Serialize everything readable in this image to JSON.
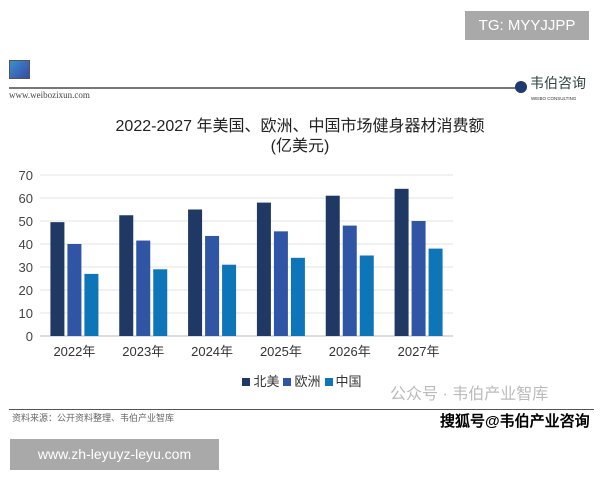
{
  "overlay_top": "TG: MYYJJPP",
  "overlay_bottom": "www.zh-leyuyz-leyu.com",
  "header": {
    "site": "www.weibozixun.com",
    "logo_cn": "韦伯咨询",
    "logo_en": "WEIBO CONSULTING"
  },
  "footer": {
    "source": "资料来源：公开资料整理、韦伯产业智库",
    "watermark_wechat": "公众号 · 韦伯产业智库",
    "watermark_sohu": "搜狐号@韦伯产业咨询"
  },
  "colors": {
    "北美": "#1f3864",
    "欧洲": "#2f55a4",
    "中国": "#0e75b8"
  },
  "chart_data": {
    "type": "bar",
    "title": "2022-2027 年美国、欧洲、中国市场健身器材消费额",
    "subtitle": "(亿美元)",
    "categories": [
      "2022年",
      "2023年",
      "2024年",
      "2025年",
      "2026年",
      "2027年"
    ],
    "series": [
      {
        "name": "北美",
        "values": [
          49.5,
          52.5,
          55,
          58,
          61,
          64
        ]
      },
      {
        "name": "欧洲",
        "values": [
          40,
          41.5,
          43.5,
          45.5,
          48,
          50
        ]
      },
      {
        "name": "中国",
        "values": [
          27,
          29,
          31,
          34,
          35,
          38
        ]
      }
    ],
    "ylim": [
      0,
      70
    ],
    "yticks": [
      0,
      10,
      20,
      30,
      40,
      50,
      60,
      70
    ],
    "grid": true,
    "legend": "bottom"
  }
}
